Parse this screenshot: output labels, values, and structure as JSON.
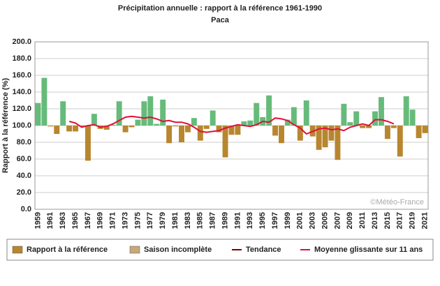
{
  "chart_data": {
    "type": "bar",
    "title": "Précipitation annuelle : rapport à la référence 1961-1990",
    "subtitle": "Paca",
    "y_label": "Rapport à la référence (%)",
    "watermark": "©Météo-France",
    "categories": [
      "1959",
      null,
      "1961",
      null,
      "1963",
      null,
      "1965",
      null,
      "1967",
      null,
      "1969",
      null,
      "1971",
      null,
      "1973",
      null,
      "1975",
      null,
      "1977",
      null,
      "1979",
      null,
      "1981",
      null,
      "1983",
      null,
      "1985",
      null,
      "1987",
      null,
      "1989",
      null,
      "1991",
      null,
      "1993",
      null,
      "1995",
      null,
      "1997",
      null,
      "1999",
      null,
      "2001",
      null,
      "2003",
      null,
      "2005",
      null,
      "2007",
      null,
      "2009",
      null,
      "2011",
      null,
      "2013",
      null,
      "2015",
      null,
      "2017",
      null,
      "2019",
      null,
      "2021"
    ],
    "baseline": 100,
    "series": [
      {
        "name": "Rapport à la référence",
        "color": "#b8862f",
        "color_above": "#66bb7a",
        "values": [
          127,
          157,
          99,
          90,
          129,
          93,
          93,
          99,
          58,
          114,
          96,
          95,
          101,
          129,
          92,
          98,
          107,
          129,
          135,
          102,
          131,
          79,
          99,
          80,
          92,
          109,
          82,
          96,
          118,
          92,
          62,
          89,
          89,
          105,
          106,
          127,
          110,
          136,
          88,
          79,
          107,
          122,
          82,
          130,
          87,
          71,
          74,
          82,
          59,
          126,
          104,
          117,
          97,
          97,
          117,
          134,
          84,
          97,
          63,
          135,
          119,
          85,
          91
        ]
      },
      {
        "name": "Moyenne glissante sur 11 ans",
        "color": "#e0103a",
        "type": "line",
        "values": [
          null,
          null,
          null,
          null,
          null,
          105,
          103,
          98,
          100,
          101,
          98,
          99,
          102,
          106,
          110,
          111,
          110,
          109,
          110,
          108,
          105,
          106,
          104,
          104,
          102,
          98,
          93,
          92,
          93,
          94,
          97,
          99,
          101,
          100,
          99,
          101,
          105,
          104,
          109,
          108,
          106,
          101,
          97,
          90,
          93,
          96,
          97,
          95,
          96,
          94,
          98,
          100,
          102,
          100,
          107,
          107,
          105,
          102,
          null,
          null,
          null,
          null,
          null
        ]
      }
    ],
    "extra_legend": [
      {
        "name": "Saison incomplète",
        "color": "#c8a878",
        "marker": "box"
      },
      {
        "name": "Tendance",
        "color": "#800000",
        "marker": "line"
      }
    ],
    "ylim": [
      0,
      200
    ],
    "yticks": [
      {
        "value": 0,
        "label": "0.0"
      },
      {
        "value": 20,
        "label": "20.0"
      },
      {
        "value": 40,
        "label": "40.0"
      },
      {
        "value": 60,
        "label": "60.0"
      },
      {
        "value": 80,
        "label": "80.0"
      },
      {
        "value": 100,
        "label": "100.0"
      },
      {
        "value": 120,
        "label": "120.0"
      },
      {
        "value": 140,
        "label": "140.0"
      },
      {
        "value": 160,
        "label": "160.0"
      },
      {
        "value": 180,
        "label": "180.0"
      },
      {
        "value": 200,
        "label": "200.0"
      }
    ],
    "grid": true
  }
}
